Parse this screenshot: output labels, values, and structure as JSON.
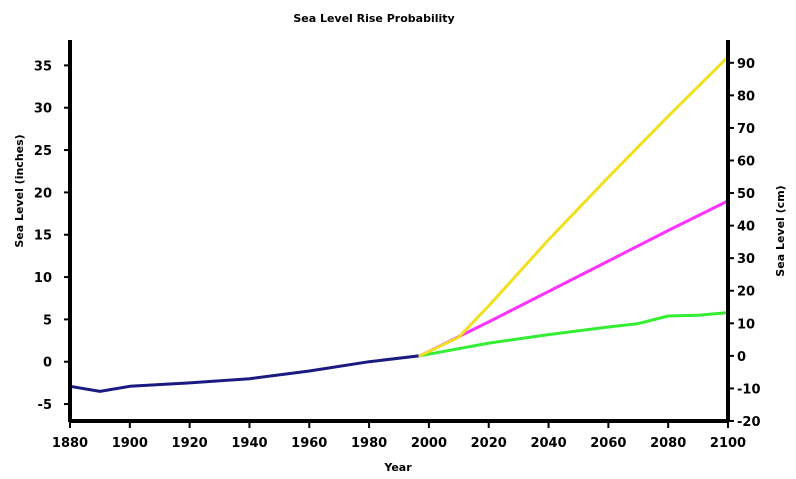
{
  "chart_data": {
    "type": "line",
    "title": "Sea Level Rise Probability",
    "xlabel": "Year",
    "ylabel_left": "Sea Level (inches)",
    "ylabel_right": "Sea Level (cm)",
    "xlim": [
      1880,
      2100
    ],
    "ylim_left": [
      -7,
      38
    ],
    "ylim_right": [
      -20,
      97
    ],
    "x_ticks": [
      1880,
      1900,
      1920,
      1940,
      1960,
      1980,
      2000,
      2020,
      2040,
      2060,
      2080,
      2100
    ],
    "y_ticks_left": [
      -5,
      0,
      5,
      10,
      15,
      20,
      25,
      30,
      35
    ],
    "y_ticks_right": [
      -20,
      -10,
      0,
      10,
      20,
      30,
      40,
      50,
      60,
      70,
      80,
      90
    ],
    "grid": false,
    "legend": "none",
    "series": [
      {
        "color": "#1a1a80",
        "x": [
          1880,
          1890,
          1900,
          1920,
          1940,
          1960,
          1980,
          1997
        ],
        "values": [
          -2.9,
          -3.5,
          -2.9,
          -2.5,
          -2.0,
          -1.1,
          0.0,
          0.7
        ]
      },
      {
        "color": "#33ee33",
        "x": [
          1997,
          2020,
          2040,
          2060,
          2070,
          2080,
          2090,
          2100
        ],
        "values": [
          0.7,
          2.2,
          3.2,
          4.1,
          4.5,
          5.4,
          5.5,
          5.8
        ]
      },
      {
        "color": "#ff33ff",
        "x": [
          1997,
          2020,
          2040,
          2060,
          2080,
          2100
        ],
        "values": [
          0.7,
          4.7,
          8.3,
          11.9,
          15.5,
          19.0
        ]
      },
      {
        "color": "#f0e020",
        "x": [
          1997,
          2010,
          2020,
          2040,
          2060,
          2080,
          2100
        ],
        "values": [
          0.7,
          2.9,
          6.6,
          14.4,
          21.8,
          29.0,
          36.0
        ]
      }
    ]
  }
}
